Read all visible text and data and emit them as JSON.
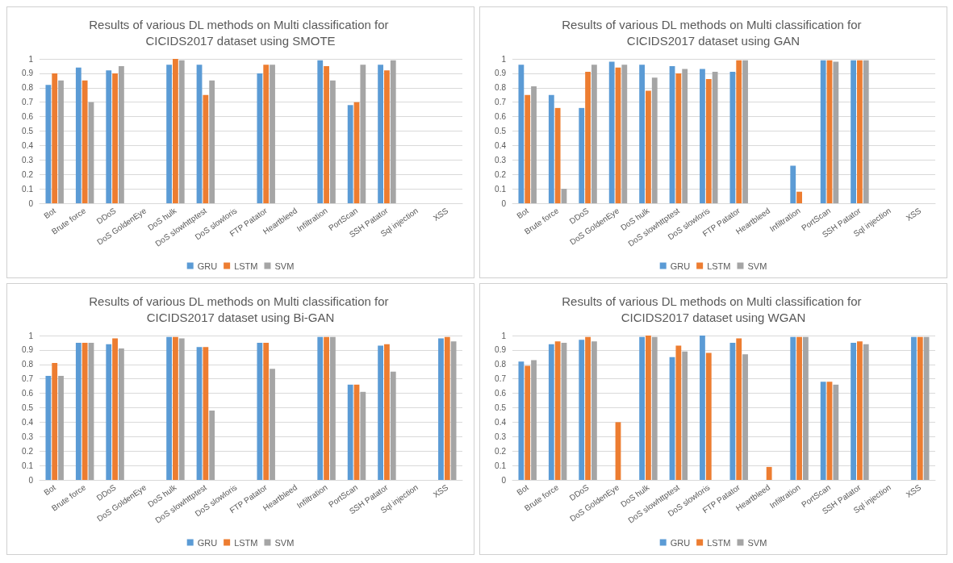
{
  "chart_data": [
    {
      "type": "bar",
      "title": "Results of various DL methods on Multi classification for CICIDS2017 dataset using SMOTE",
      "categories": [
        "Bot",
        "Brute force",
        "DDoS",
        "DoS GoldenEye",
        "DoS hulk",
        "DoS slowhttptest",
        "DoS slowloris",
        "FTP Patator",
        "Heartbleed",
        "Infiltration",
        "PortScan",
        "SSH Patator",
        "Sql injection",
        "XSS"
      ],
      "series": [
        {
          "name": "GRU",
          "color": "#5b9bd5",
          "values": [
            0.82,
            0.94,
            0.92,
            0,
            0.96,
            0.96,
            0,
            0.9,
            0,
            0.99,
            0.68,
            0.96,
            0,
            0
          ]
        },
        {
          "name": "LSTM",
          "color": "#ed7d31",
          "values": [
            0.9,
            0.85,
            0.9,
            0,
            1.0,
            0.75,
            0,
            0.96,
            0,
            0.95,
            0.7,
            0.92,
            0,
            0
          ]
        },
        {
          "name": "SVM",
          "color": "#a5a5a5",
          "values": [
            0.85,
            0.7,
            0.95,
            0,
            0.99,
            0.85,
            0,
            0.96,
            0,
            0.85,
            0.96,
            0.99,
            0,
            0
          ]
        }
      ],
      "ylim": [
        0,
        1
      ],
      "yticks": [
        0,
        0.1,
        0.2,
        0.3,
        0.4,
        0.5,
        0.6,
        0.7,
        0.8,
        0.9,
        1
      ],
      "grid": "y",
      "legend": "bottom"
    },
    {
      "type": "bar",
      "title": "Results of various DL methods on Multi classification for CICIDS2017 dataset using GAN",
      "categories": [
        "Bot",
        "Brute force",
        "DDoS",
        "DoS GoldenEye",
        "DoS hulk",
        "DoS slowhttptest",
        "DoS slowloris",
        "FTP Patator",
        "Heartbleed",
        "Infiltration",
        "PortScan",
        "SSH Patator",
        "Sql injection",
        "XSS"
      ],
      "series": [
        {
          "name": "GRU",
          "color": "#5b9bd5",
          "values": [
            0.96,
            0.75,
            0.66,
            0.98,
            0.96,
            0.95,
            0.93,
            0.91,
            0,
            0.26,
            0.99,
            0.99,
            0,
            0
          ]
        },
        {
          "name": "LSTM",
          "color": "#ed7d31",
          "values": [
            0.75,
            0.66,
            0.91,
            0.94,
            0.78,
            0.9,
            0.86,
            0.99,
            0,
            0.08,
            0.99,
            0.99,
            0,
            0
          ]
        },
        {
          "name": "SVM",
          "color": "#a5a5a5",
          "values": [
            0.81,
            0.1,
            0.96,
            0.96,
            0.87,
            0.93,
            0.91,
            0.99,
            0,
            0,
            0.98,
            0.99,
            0,
            0
          ]
        }
      ],
      "ylim": [
        0,
        1
      ],
      "yticks": [
        0,
        0.1,
        0.2,
        0.3,
        0.4,
        0.5,
        0.6,
        0.7,
        0.8,
        0.9,
        1
      ],
      "grid": "y",
      "legend": "bottom"
    },
    {
      "type": "bar",
      "title": "Results of various DL methods on Multi classification for CICIDS2017 dataset using Bi-GAN",
      "categories": [
        "Bot",
        "Brute force",
        "DDoS",
        "DoS GoldenEye",
        "DoS hulk",
        "DoS slowhttptest",
        "DoS slowloris",
        "FTP Patator",
        "Heartbleed",
        "Infiltration",
        "PortScan",
        "SSH Patator",
        "Sql injection",
        "XSS"
      ],
      "series": [
        {
          "name": "GRU",
          "color": "#5b9bd5",
          "values": [
            0.72,
            0.95,
            0.94,
            0,
            0.99,
            0.92,
            0,
            0.95,
            0,
            0.99,
            0.66,
            0.93,
            0,
            0.98
          ]
        },
        {
          "name": "LSTM",
          "color": "#ed7d31",
          "values": [
            0.81,
            0.95,
            0.98,
            0,
            0.99,
            0.92,
            0,
            0.95,
            0,
            0.99,
            0.66,
            0.94,
            0,
            0.99
          ]
        },
        {
          "name": "SVM",
          "color": "#a5a5a5",
          "values": [
            0.72,
            0.95,
            0.91,
            0,
            0.98,
            0.48,
            0,
            0.77,
            0,
            0.99,
            0.61,
            0.75,
            0,
            0.96
          ]
        }
      ],
      "ylim": [
        0,
        1
      ],
      "yticks": [
        0,
        0.1,
        0.2,
        0.3,
        0.4,
        0.5,
        0.6,
        0.7,
        0.8,
        0.9,
        1
      ],
      "grid": "y",
      "legend": "bottom"
    },
    {
      "type": "bar",
      "title": "Results of various DL methods on Multi classification for CICIDS2017 dataset using WGAN",
      "categories": [
        "Bot",
        "Brute force",
        "DDoS",
        "DoS GoldenEye",
        "DoS hulk",
        "DoS slowhttptest",
        "DoS slowloris",
        "FTP Patator",
        "Heartbleed",
        "Infiltration",
        "PortScan",
        "SSH Patator",
        "Sql injection",
        "XSS"
      ],
      "series": [
        {
          "name": "GRU",
          "color": "#5b9bd5",
          "values": [
            0.82,
            0.94,
            0.97,
            0,
            0.99,
            0.85,
            1.0,
            0.95,
            0,
            0.99,
            0.68,
            0.95,
            0,
            0.99
          ]
        },
        {
          "name": "LSTM",
          "color": "#ed7d31",
          "values": [
            0.79,
            0.96,
            0.99,
            0.4,
            1.0,
            0.93,
            0.88,
            0.98,
            0.09,
            0.99,
            0.68,
            0.96,
            0,
            0.99
          ]
        },
        {
          "name": "SVM",
          "color": "#a5a5a5",
          "values": [
            0.83,
            0.95,
            0.96,
            0,
            0.99,
            0.89,
            0,
            0.87,
            0,
            0.99,
            0.66,
            0.94,
            0,
            0.99
          ]
        }
      ],
      "ylim": [
        0,
        1
      ],
      "yticks": [
        0,
        0.1,
        0.2,
        0.3,
        0.4,
        0.5,
        0.6,
        0.7,
        0.8,
        0.9,
        1
      ],
      "grid": "y",
      "legend": "bottom"
    }
  ]
}
